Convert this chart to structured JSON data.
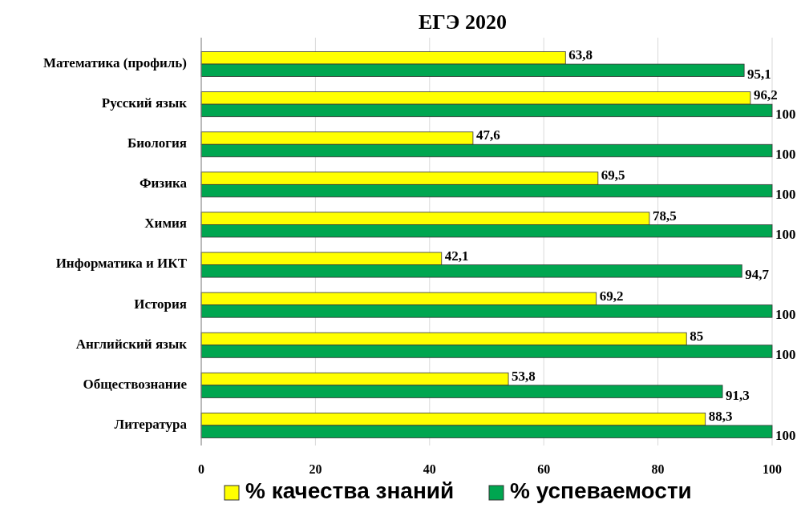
{
  "chart_data": {
    "type": "bar",
    "orientation": "horizontal",
    "title": "ЕГЭ 2020",
    "categories": [
      "Математика (профиль)",
      "Русский язык",
      "Биология",
      "Физика",
      "Химия",
      "Информатика  и ИКТ",
      "История",
      "Английский язык",
      "Обществознание",
      "Литература"
    ],
    "series": [
      {
        "name": "% качества знаний",
        "color": "#ffff00",
        "values": [
          63.8,
          96.2,
          47.6,
          69.5,
          78.5,
          42.1,
          69.2,
          85,
          53.8,
          88.3
        ],
        "value_labels": [
          "63,8",
          "96,2",
          "47,6",
          "69,5",
          "78,5",
          "42,1",
          "69,2",
          "85",
          "53,8",
          "88,3"
        ]
      },
      {
        "name": "% успеваемости",
        "color": "#00a650",
        "values": [
          95.1,
          100,
          100,
          100,
          100,
          94.7,
          100,
          100,
          91.3,
          100
        ],
        "value_labels": [
          "95,1",
          "100",
          "100",
          "100",
          "100",
          "94,7",
          "100",
          "100",
          "91,3",
          "100"
        ]
      }
    ],
    "xlim": [
      0,
      100
    ],
    "xticks": [
      0,
      20,
      40,
      60,
      80,
      100
    ],
    "grid": "x",
    "legend": "bottom"
  }
}
